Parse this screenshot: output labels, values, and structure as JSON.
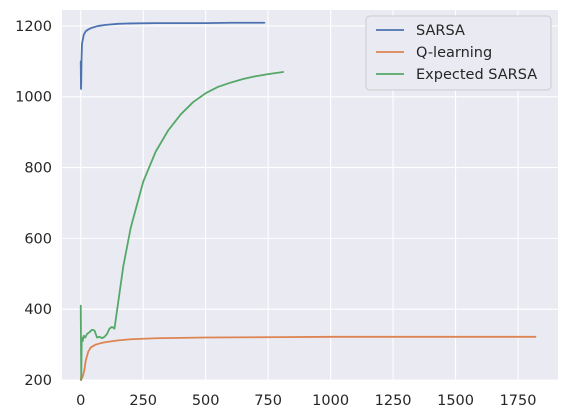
{
  "chart_data": {
    "type": "line",
    "title": "",
    "xlabel": "",
    "ylabel": "",
    "xlim": [
      -75,
      1910
    ],
    "ylim": [
      200,
      1245
    ],
    "xticks": [
      0,
      250,
      500,
      750,
      1000,
      1250,
      1500,
      1750
    ],
    "yticks": [
      200,
      400,
      600,
      800,
      1000,
      1200
    ],
    "xtick_labels": [
      "0",
      "250",
      "500",
      "750",
      "1000",
      "1250",
      "1500",
      "1750"
    ],
    "ytick_labels": [
      "200",
      "400",
      "600",
      "800",
      "1000",
      "1200"
    ],
    "grid": true,
    "legend_position": "top-right",
    "series": [
      {
        "name": "SARSA",
        "color": "#4c72b0",
        "x": [
          0,
          1,
          2,
          3,
          5,
          8,
          12,
          20,
          30,
          45,
          70,
          100,
          150,
          200,
          300,
          400,
          500,
          600,
          700,
          735
        ],
        "y": [
          1100,
          1022,
          1040,
          1100,
          1150,
          1160,
          1175,
          1185,
          1190,
          1195,
          1200,
          1203,
          1206,
          1207,
          1208,
          1208,
          1208,
          1209,
          1209,
          1209
        ]
      },
      {
        "name": "Q-learning",
        "color": "#dd8452",
        "x": [
          0,
          2,
          5,
          10,
          15,
          20,
          30,
          40,
          60,
          80,
          100,
          150,
          200,
          300,
          500,
          800,
          1000,
          1250,
          1500,
          1820
        ],
        "y": [
          200,
          210,
          205,
          215,
          230,
          255,
          280,
          292,
          300,
          304,
          307,
          312,
          315,
          318,
          320,
          321,
          322,
          322,
          322,
          322
        ]
      },
      {
        "name": "Expected SARSA",
        "color": "#55a868",
        "x": [
          0,
          2,
          4,
          8,
          12,
          18,
          25,
          35,
          45,
          55,
          65,
          75,
          85,
          95,
          105,
          115,
          125,
          135,
          150,
          170,
          200,
          250,
          300,
          350,
          400,
          450,
          500,
          550,
          600,
          650,
          700,
          750,
          810
        ],
        "y": [
          410,
          200,
          320,
          310,
          325,
          320,
          330,
          335,
          342,
          340,
          320,
          322,
          318,
          322,
          330,
          345,
          350,
          345,
          420,
          520,
          630,
          760,
          845,
          905,
          950,
          985,
          1010,
          1028,
          1040,
          1050,
          1058,
          1064,
          1070
        ]
      }
    ]
  }
}
